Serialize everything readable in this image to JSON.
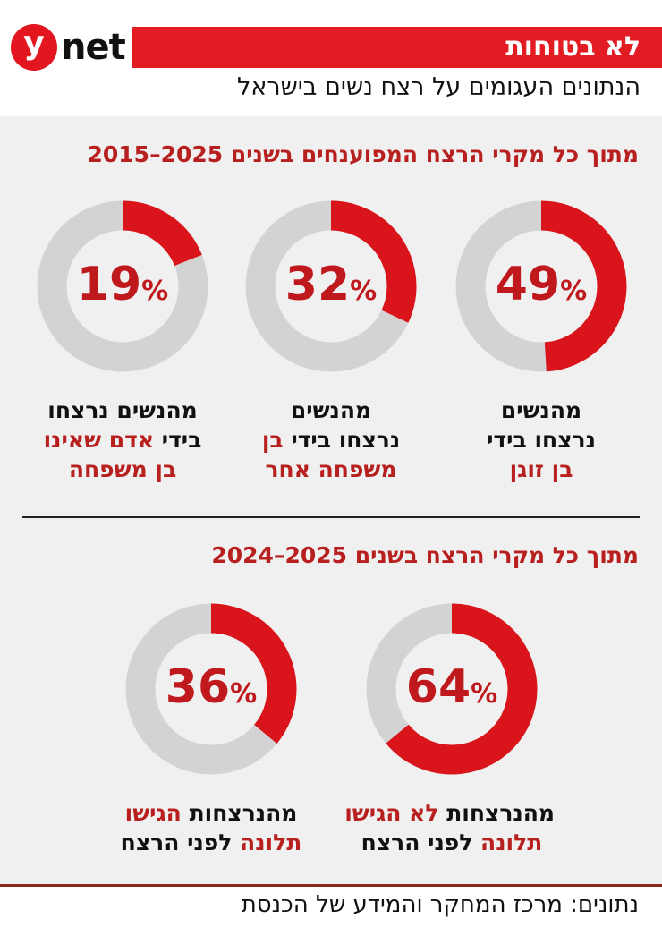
{
  "logo": {
    "mark": "y",
    "text": "net"
  },
  "header": {
    "banner": "לא בטוחות",
    "subtitle": "הנתונים העגומים על רצח נשים בישראל"
  },
  "colors": {
    "accent": "#e31b23",
    "donut_fill": "#d9141b",
    "donut_track": "#d3d3d3",
    "heading": "#b8201f"
  },
  "chart_data": [
    {
      "type": "pie",
      "variant": "donut",
      "title": "מתוך כל מקרי הרצח המפוענחים בשנים 2025–2015",
      "unit": "%",
      "items": [
        {
          "value": 49,
          "label": [
            [
              {
                "t": "מהנשים",
                "red": false
              }
            ],
            [
              {
                "t": "נרצחו בידי",
                "red": false
              }
            ],
            [
              {
                "t": "בן זוגן",
                "red": true
              }
            ]
          ]
        },
        {
          "value": 32,
          "label": [
            [
              {
                "t": "מהנשים",
                "red": false
              }
            ],
            [
              {
                "t": "נרצחו בידי ",
                "red": false
              },
              {
                "t": "בן",
                "red": true
              }
            ],
            [
              {
                "t": "משפחה אחר",
                "red": true
              }
            ]
          ]
        },
        {
          "value": 19,
          "label": [
            [
              {
                "t": "מהנשים נרצחו",
                "red": false
              }
            ],
            [
              {
                "t": "בידי ",
                "red": false
              },
              {
                "t": "אדם שאינו",
                "red": true
              }
            ],
            [
              {
                "t": "בן משפחה",
                "red": true
              }
            ]
          ]
        }
      ]
    },
    {
      "type": "pie",
      "variant": "donut",
      "title": "מתוך כל מקרי הרצח בשנים 2025–2024",
      "unit": "%",
      "items": [
        {
          "value": 64,
          "label": [
            [
              {
                "t": "מהנרצחות ",
                "red": false
              },
              {
                "t": "לא הגישו",
                "red": true
              }
            ],
            [
              {
                "t": "תלונה",
                "red": true
              },
              {
                "t": " לפני הרצח",
                "red": false
              }
            ]
          ]
        },
        {
          "value": 36,
          "label": [
            [
              {
                "t": "מהנרצחות ",
                "red": false
              },
              {
                "t": "הגישו",
                "red": true
              }
            ],
            [
              {
                "t": "תלונה",
                "red": true
              },
              {
                "t": " לפני הרצח",
                "red": false
              }
            ]
          ]
        }
      ]
    }
  ],
  "footer": {
    "source": "נתונים: מרכז המחקר והמידע של הכנסת"
  }
}
